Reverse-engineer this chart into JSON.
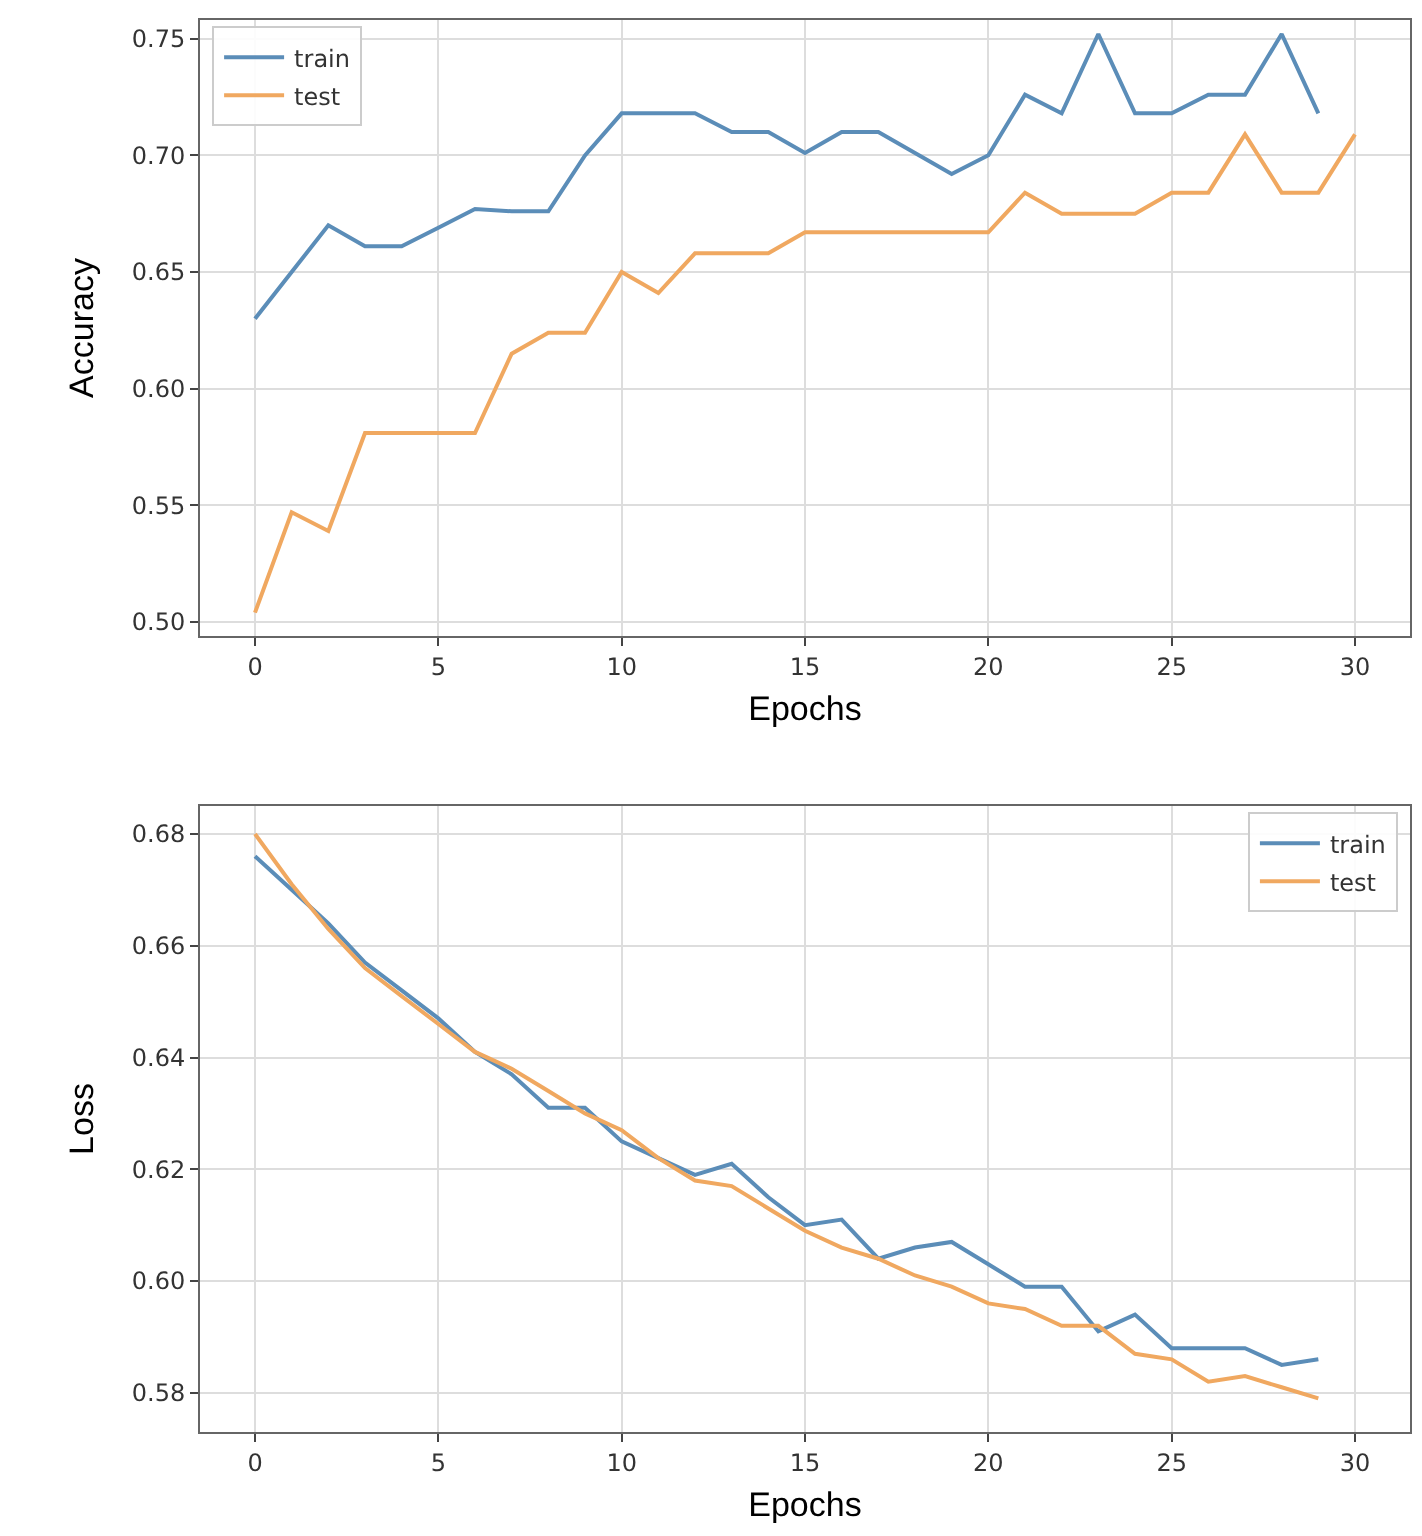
{
  "chart_data": [
    {
      "type": "line",
      "xlabel": "Epochs",
      "ylabel": "Accuracy",
      "xlim": [
        -1.5,
        31.5
      ],
      "xticks": [
        0,
        5,
        10,
        15,
        20,
        25,
        30
      ],
      "ylim": [
        0.494,
        0.758
      ],
      "yticks": [
        {
          "value": 0.5,
          "label": "0.50"
        },
        0.55,
        {
          "value": 0.6,
          "label": "0.60"
        },
        0.65,
        {
          "value": 0.7,
          "label": "0.70"
        },
        0.75
      ],
      "grid": true,
      "legend": "top left",
      "series": [
        {
          "name": "train",
          "color": "#5b8db8",
          "x": [
            0,
            1,
            2,
            3,
            4,
            5,
            6,
            7,
            8,
            9,
            10,
            11,
            12,
            13,
            14,
            15,
            16,
            17,
            18,
            19,
            20,
            21,
            22,
            23,
            24,
            25,
            26,
            27,
            28,
            29
          ],
          "values": [
            0.63,
            0.65,
            0.67,
            0.661,
            0.661,
            0.669,
            0.677,
            0.676,
            0.676,
            0.7,
            0.718,
            0.718,
            0.718,
            0.71,
            0.71,
            0.701,
            0.71,
            0.71,
            0.701,
            0.692,
            0.7,
            0.726,
            0.718,
            0.752,
            0.718,
            0.718,
            0.726,
            0.726,
            0.752,
            0.718
          ]
        },
        {
          "name": "test",
          "color": "#f0a860",
          "x": [
            0,
            1,
            2,
            3,
            4,
            5,
            6,
            7,
            8,
            9,
            10,
            11,
            12,
            13,
            14,
            15,
            16,
            17,
            18,
            19,
            20,
            21,
            22,
            23,
            24,
            25,
            26,
            27,
            28,
            29,
            30
          ],
          "values": [
            0.504,
            0.547,
            0.539,
            0.581,
            0.581,
            0.581,
            0.581,
            0.615,
            0.624,
            0.624,
            0.65,
            0.641,
            0.658,
            0.658,
            0.658,
            0.667,
            0.667,
            0.667,
            0.667,
            0.667,
            0.667,
            0.684,
            0.675,
            0.675,
            0.675,
            0.684,
            0.684,
            0.709,
            0.684,
            0.684,
            0.709
          ]
        }
      ]
    },
    {
      "type": "line",
      "xlabel": "Epochs",
      "ylabel": "Loss",
      "xlim": [
        -1.5,
        31.5
      ],
      "xticks": [
        0,
        5,
        10,
        15,
        20,
        25,
        30
      ],
      "ylim": [
        0.573,
        0.685
      ],
      "yticks": [
        0.58,
        {
          "value": 0.6,
          "label": "0.60"
        },
        0.62,
        0.64,
        0.66,
        0.68
      ],
      "grid": true,
      "legend": "top right",
      "series": [
        {
          "name": "train",
          "color": "#5b8db8",
          "x": [
            0,
            1,
            2,
            3,
            4,
            5,
            6,
            7,
            8,
            9,
            10,
            11,
            12,
            13,
            14,
            15,
            16,
            17,
            18,
            19,
            20,
            21,
            22,
            23,
            24,
            25,
            26,
            27,
            28,
            29
          ],
          "values": [
            0.676,
            0.67,
            0.664,
            0.657,
            0.652,
            0.647,
            0.641,
            0.637,
            0.631,
            0.631,
            0.625,
            0.622,
            0.619,
            0.621,
            0.615,
            0.61,
            0.611,
            0.604,
            0.606,
            0.607,
            0.603,
            0.599,
            0.599,
            0.591,
            0.594,
            0.588,
            0.588,
            0.588,
            0.585,
            0.586
          ]
        },
        {
          "name": "test",
          "color": "#f0a860",
          "x": [
            0,
            1,
            2,
            3,
            4,
            5,
            6,
            7,
            8,
            9,
            10,
            11,
            12,
            13,
            14,
            15,
            16,
            17,
            18,
            19,
            20,
            21,
            22,
            23,
            24,
            25,
            26,
            27,
            28,
            29
          ],
          "values": [
            0.68,
            0.671,
            0.663,
            0.656,
            0.651,
            0.646,
            0.641,
            0.638,
            0.634,
            0.63,
            0.627,
            0.622,
            0.618,
            0.617,
            0.613,
            0.609,
            0.606,
            0.604,
            0.601,
            0.599,
            0.596,
            0.595,
            0.592,
            0.592,
            0.587,
            0.586,
            0.582,
            0.583,
            0.581,
            0.579
          ]
        }
      ]
    }
  ]
}
